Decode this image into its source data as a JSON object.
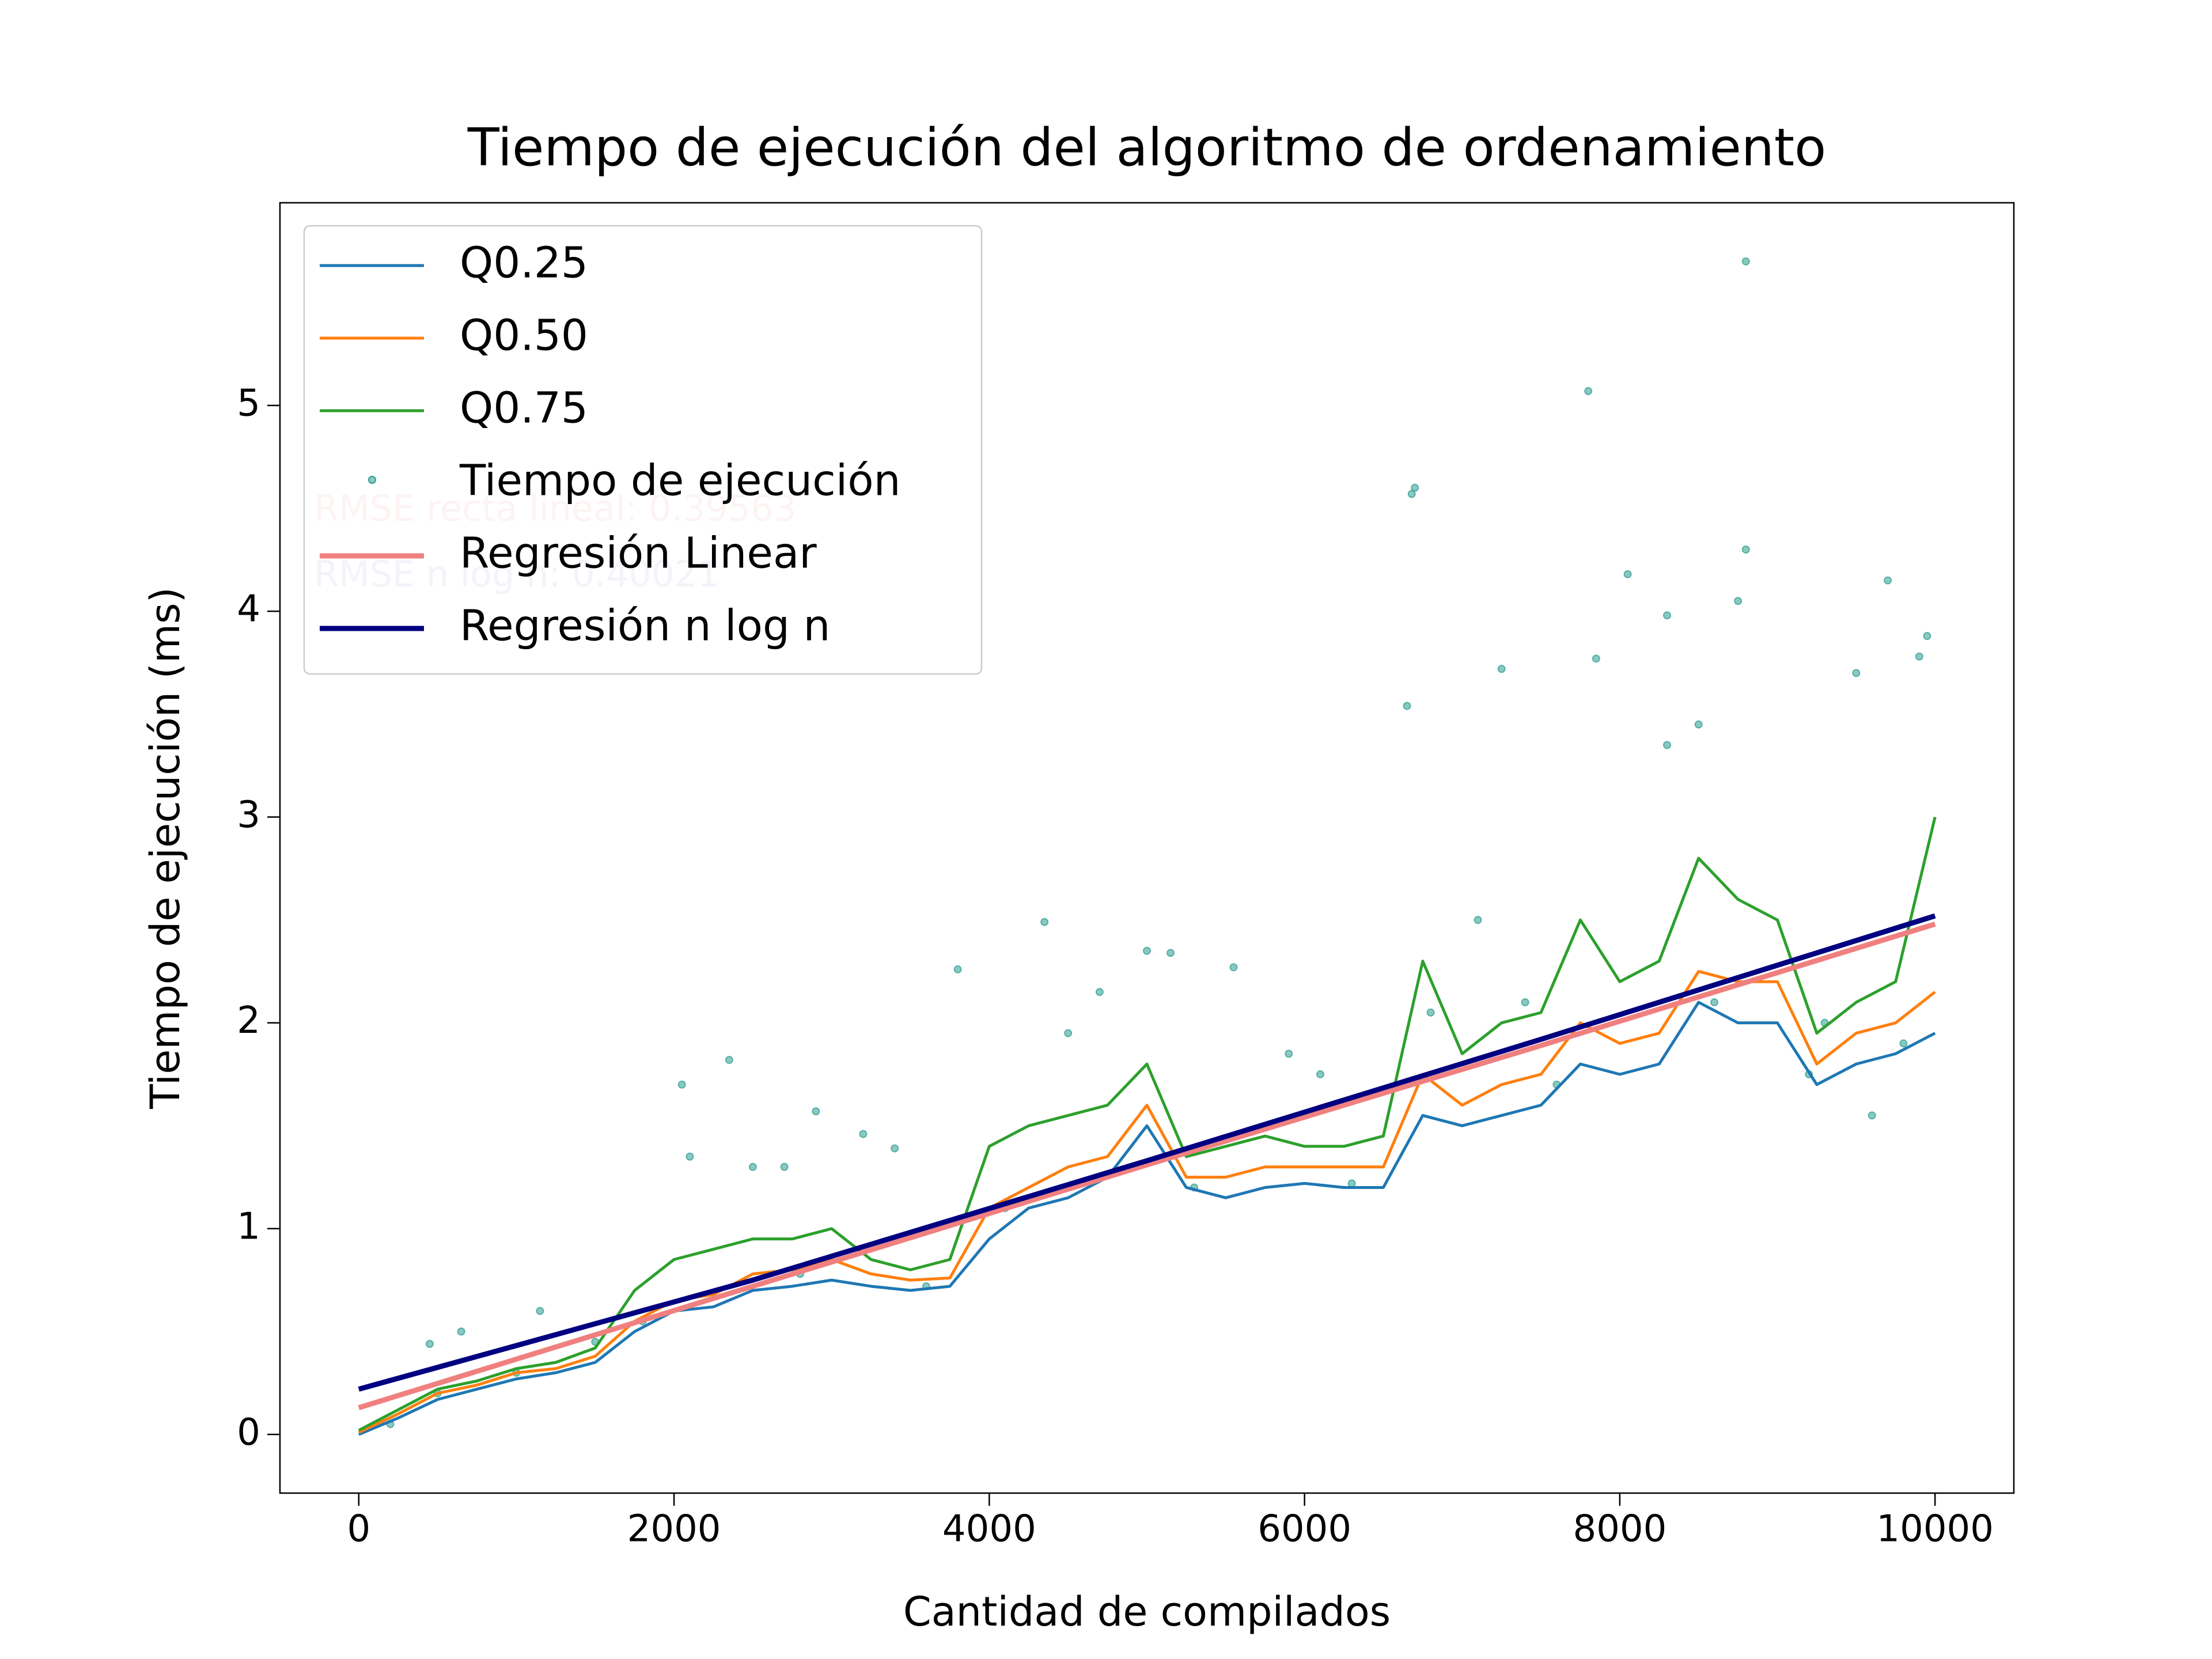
{
  "chart_data": {
    "type": "line",
    "title": "Tiempo de ejecución del algoritmo de ordenamiento",
    "xlabel": "Cantidad de compilados",
    "ylabel": "Tiempo de ejecución (ms)",
    "xlim": [
      -500,
      10500
    ],
    "ylim": [
      -0.285,
      5.985
    ],
    "xticks": [
      0,
      2000,
      4000,
      6000,
      8000,
      10000
    ],
    "yticks": [
      0,
      1,
      2,
      3,
      4,
      5
    ],
    "legend": "upper left",
    "annotations": [
      {
        "text": "RMSE recta lineal: 0.39563",
        "color": "#f4c4c4"
      },
      {
        "text": "RMSE n log n: 0.40021",
        "color": "#c4c4e4"
      }
    ],
    "series": [
      {
        "name": "Q0.25",
        "kind": "line",
        "color": "#1f77b4",
        "x": [
          0,
          250,
          500,
          750,
          1000,
          1250,
          1500,
          1750,
          2000,
          2250,
          2500,
          2750,
          3000,
          3250,
          3500,
          3750,
          4000,
          4250,
          4500,
          4750,
          5000,
          5250,
          5500,
          5750,
          6000,
          6250,
          6500,
          6750,
          7000,
          7250,
          7500,
          7750,
          8000,
          8250,
          8500,
          8750,
          9000,
          9250,
          9500,
          9750,
          10000
        ],
        "values": [
          0,
          0.08,
          0.17,
          0.22,
          0.27,
          0.3,
          0.35,
          0.5,
          0.6,
          0.62,
          0.7,
          0.72,
          0.75,
          0.72,
          0.7,
          0.72,
          0.95,
          1.1,
          1.15,
          1.25,
          1.5,
          1.2,
          1.15,
          1.2,
          1.22,
          1.2,
          1.2,
          1.55,
          1.5,
          1.55,
          1.6,
          1.8,
          1.75,
          1.8,
          2.1,
          2.0,
          2.0,
          1.7,
          1.8,
          1.85,
          1.95
        ]
      },
      {
        "name": "Q0.50",
        "kind": "line",
        "color": "#ff7f0e",
        "x": [
          0,
          250,
          500,
          750,
          1000,
          1250,
          1500,
          1750,
          2000,
          2250,
          2500,
          2750,
          3000,
          3250,
          3500,
          3750,
          4000,
          4250,
          4500,
          4750,
          5000,
          5250,
          5500,
          5750,
          6000,
          6250,
          6500,
          6750,
          7000,
          7250,
          7500,
          7750,
          8000,
          8250,
          8500,
          8750,
          9000,
          9250,
          9500,
          9750,
          10000
        ],
        "values": [
          0.01,
          0.1,
          0.2,
          0.24,
          0.3,
          0.32,
          0.38,
          0.55,
          0.65,
          0.68,
          0.78,
          0.8,
          0.85,
          0.78,
          0.75,
          0.76,
          1.1,
          1.2,
          1.3,
          1.35,
          1.6,
          1.25,
          1.25,
          1.3,
          1.3,
          1.3,
          1.3,
          1.75,
          1.6,
          1.7,
          1.75,
          2.0,
          1.9,
          1.95,
          2.25,
          2.2,
          2.2,
          1.8,
          1.95,
          2.0,
          2.15
        ]
      },
      {
        "name": "Q0.75",
        "kind": "line",
        "color": "#2ca02c",
        "x": [
          0,
          250,
          500,
          750,
          1000,
          1250,
          1500,
          1750,
          2000,
          2250,
          2500,
          2750,
          3000,
          3250,
          3500,
          3750,
          4000,
          4250,
          4500,
          4750,
          5000,
          5250,
          5500,
          5750,
          6000,
          6250,
          6500,
          6750,
          7000,
          7250,
          7500,
          7750,
          8000,
          8250,
          8500,
          8750,
          9000,
          9250,
          9500,
          9750,
          10000
        ],
        "values": [
          0.02,
          0.12,
          0.22,
          0.26,
          0.32,
          0.35,
          0.42,
          0.7,
          0.85,
          0.9,
          0.95,
          0.95,
          1.0,
          0.85,
          0.8,
          0.85,
          1.4,
          1.5,
          1.55,
          1.6,
          1.8,
          1.35,
          1.4,
          1.45,
          1.4,
          1.4,
          1.45,
          2.3,
          1.85,
          2.0,
          2.05,
          2.5,
          2.2,
          2.3,
          2.8,
          2.6,
          2.5,
          1.95,
          2.1,
          2.2,
          3.0
        ]
      },
      {
        "name": "Tiempo de ejecución",
        "kind": "scatter",
        "color": "#2a9d8f",
        "x": [
          8800,
          7800,
          6700,
          6680,
          8800,
          8050,
          9700,
          8300,
          8750,
          9950,
          9900,
          7250,
          7850,
          8500,
          8300,
          9500,
          6650,
          4350,
          5000,
          5150,
          5550,
          3800,
          2050,
          2350,
          2900,
          3200,
          3400,
          1150,
          650,
          450,
          2100,
          2500,
          2700,
          4500,
          4700,
          5900,
          6100,
          6800,
          7100,
          7400,
          9300,
          9600,
          9200,
          3600,
          1000,
          1500,
          200,
          500,
          1800,
          2800,
          4100,
          5300,
          6300,
          7600,
          8600,
          9800
        ],
        "values": [
          5.7,
          5.07,
          4.6,
          4.57,
          4.3,
          4.18,
          4.15,
          3.98,
          4.05,
          3.88,
          3.78,
          3.72,
          3.77,
          3.45,
          3.35,
          3.7,
          3.54,
          2.49,
          2.35,
          2.34,
          2.27,
          2.26,
          1.7,
          1.82,
          1.57,
          1.46,
          1.39,
          0.6,
          0.5,
          0.44,
          1.35,
          1.3,
          1.3,
          1.95,
          2.15,
          1.85,
          1.75,
          2.05,
          2.5,
          2.1,
          2.0,
          1.55,
          1.75,
          0.72,
          0.3,
          0.45,
          0.05,
          0.2,
          0.55,
          0.78,
          1.1,
          1.2,
          1.22,
          1.7,
          2.1,
          1.9
        ]
      },
      {
        "name": "Regresión Linear",
        "kind": "line",
        "color": "#f08080",
        "width": 9,
        "x": [
          0,
          2500,
          5000,
          7500,
          10000
        ],
        "values": [
          0.13,
          0.72,
          1.31,
          1.89,
          2.48
        ]
      },
      {
        "name": "Regresión n log n",
        "kind": "line",
        "color": "#000080",
        "width": 9,
        "x": [
          0,
          2500,
          5000,
          7500,
          10000
        ],
        "values": [
          0.22,
          0.75,
          1.33,
          1.92,
          2.52
        ]
      }
    ]
  }
}
